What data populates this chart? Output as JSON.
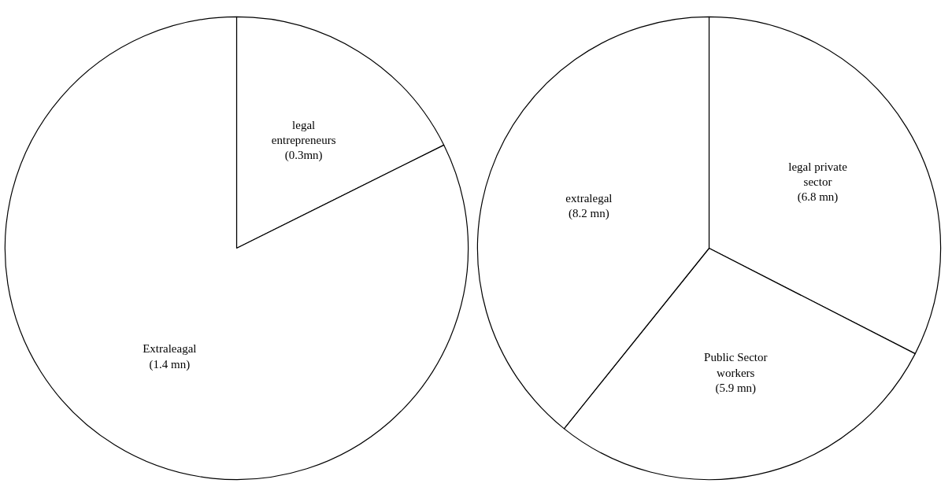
{
  "chart_data": [
    {
      "type": "pie",
      "categories": [
        "legal entrepreneurs",
        "Extraleagal"
      ],
      "values": [
        0.3,
        1.4
      ],
      "value_labels": [
        "(0.3mn)",
        "(1.4 mn)"
      ],
      "colors": [
        "#ffffff",
        "#ffffff"
      ]
    },
    {
      "type": "pie",
      "categories": [
        "legal private sector",
        "Public Sector workers",
        "extralegal"
      ],
      "values": [
        6.8,
        5.9,
        8.2
      ],
      "value_labels": [
        "(6.8 mn)",
        "(5.9 mn)",
        "(8.2 mn)"
      ],
      "colors": [
        "#ffffff",
        "#ffffff",
        "#ffffff"
      ]
    }
  ]
}
